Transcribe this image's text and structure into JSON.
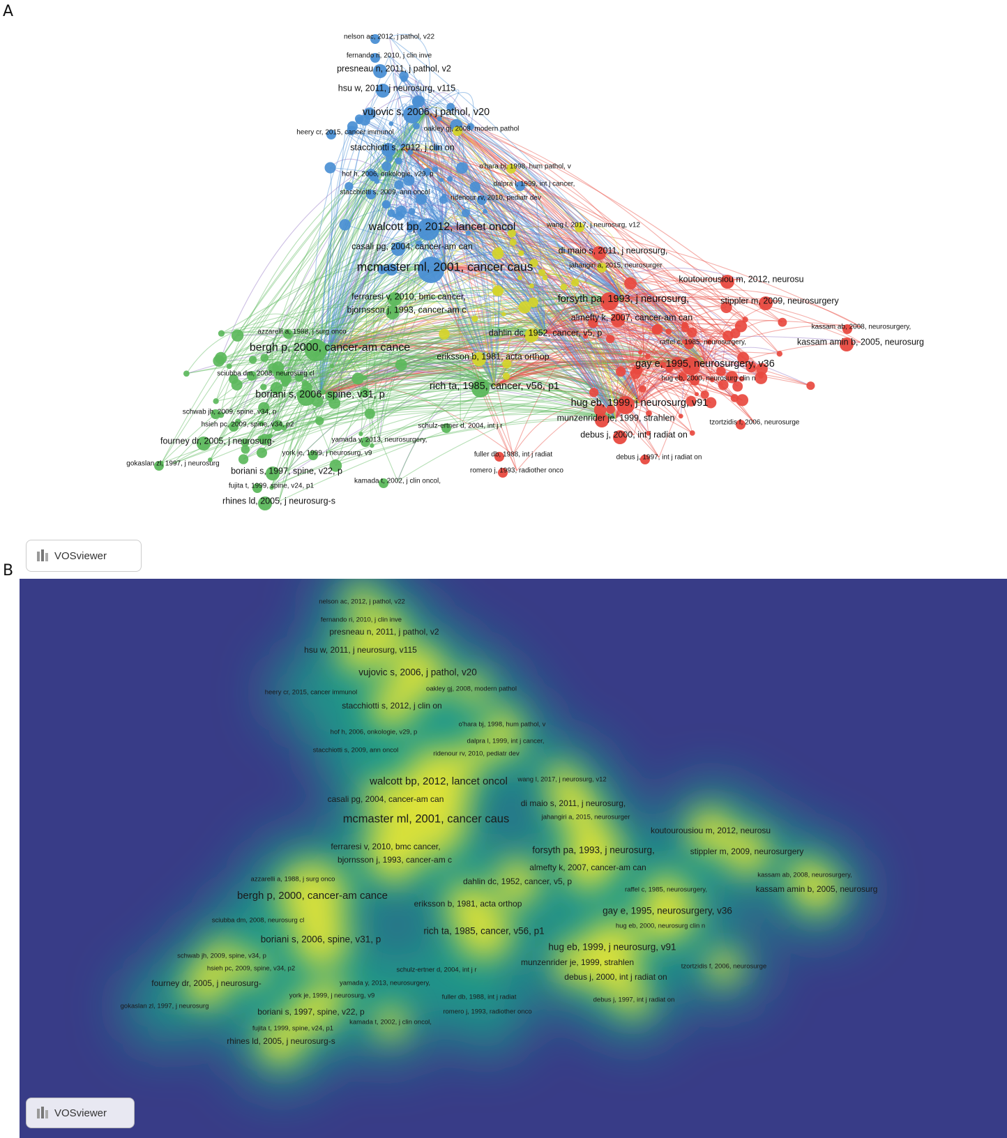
{
  "panels": [
    {
      "label": "A",
      "view": "network"
    },
    {
      "label": "B",
      "view": "density"
    }
  ],
  "badge_text": "VOSviewer",
  "clusters": {
    "blue": "#4a8fd4",
    "green": "#5cb85c",
    "red": "#e8493f",
    "yellow": "#d4d42a",
    "purple": "#8e6fc1"
  },
  "density_colors": {
    "background": "#383c87",
    "mid": "#1f9a8a",
    "high": "#e6e635"
  },
  "nodes": [
    {
      "text": "nelson ac, 2012, j pathol, v22",
      "cluster": "blue",
      "weight": 1
    },
    {
      "text": "fernando ri, 2010, j clin inve",
      "cluster": "blue",
      "weight": 1
    },
    {
      "text": "presneau n, 2011, j pathol, v2",
      "cluster": "blue",
      "weight": 2
    },
    {
      "text": "hsu w, 2011, j neurosurg, v115",
      "cluster": "blue",
      "weight": 2
    },
    {
      "text": "vujovic s, 2006, j pathol, v20",
      "cluster": "blue",
      "weight": 3
    },
    {
      "text": "heery cr, 2015, cancer immunol",
      "cluster": "blue",
      "weight": 1
    },
    {
      "text": "oakley gj, 2008, modern pathol",
      "cluster": "yellow",
      "weight": 1
    },
    {
      "text": "stacchiotti s, 2012, j clin on",
      "cluster": "blue",
      "weight": 2
    },
    {
      "text": "o'hara bj, 1998, hum pathol, v",
      "cluster": "yellow",
      "weight": 1
    },
    {
      "text": "hof h, 2006, onkologie, v29, p",
      "cluster": "blue",
      "weight": 1
    },
    {
      "text": "dalpra l, 1999, int j cancer,",
      "cluster": "blue",
      "weight": 1
    },
    {
      "text": "stacchiotti s, 2009, ann oncol",
      "cluster": "blue",
      "weight": 1
    },
    {
      "text": "ridenour rv, 2010, pediatr dev",
      "cluster": "blue",
      "weight": 1
    },
    {
      "text": "walcott bp, 2012, lancet oncol",
      "cluster": "blue",
      "weight": 4
    },
    {
      "text": "wang l, 2017, j neurosurg, v12",
      "cluster": "yellow",
      "weight": 1
    },
    {
      "text": "casali pg, 2004, cancer-am can",
      "cluster": "blue",
      "weight": 2
    },
    {
      "text": "di maio s, 2011, j neurosurg,",
      "cluster": "red",
      "weight": 2
    },
    {
      "text": "mcmaster ml, 2001, cancer caus",
      "cluster": "blue",
      "weight": 5
    },
    {
      "text": "jahangiri a, 2015, neurosurger",
      "cluster": "yellow",
      "weight": 1
    },
    {
      "text": "koutourousiou m, 2012, neurosu",
      "cluster": "red",
      "weight": 2
    },
    {
      "text": "ferraresi v, 2010, bmc cancer,",
      "cluster": "green",
      "weight": 2
    },
    {
      "text": "forsyth pa, 1993, j neurosurg,",
      "cluster": "red",
      "weight": 3
    },
    {
      "text": "stippler m, 2009, neurosurgery",
      "cluster": "red",
      "weight": 2
    },
    {
      "text": "bjornsson j, 1993, cancer-am c",
      "cluster": "green",
      "weight": 2
    },
    {
      "text": "almefty k, 2007, cancer-am can",
      "cluster": "red",
      "weight": 2
    },
    {
      "text": "azzarelli a, 1988, j surg onco",
      "cluster": "green",
      "weight": 1
    },
    {
      "text": "kassam ab, 2008, neurosurgery,",
      "cluster": "red",
      "weight": 1
    },
    {
      "text": "dahlin dc, 1952, cancer, v5, p",
      "cluster": "yellow",
      "weight": 2
    },
    {
      "text": "raffel c, 1985, neurosurgery,",
      "cluster": "red",
      "weight": 1
    },
    {
      "text": "kassam amin b, 2005, neurosurg",
      "cluster": "red",
      "weight": 2
    },
    {
      "text": "bergh p, 2000, cancer-am cance",
      "cluster": "green",
      "weight": 4
    },
    {
      "text": "eriksson b, 1981, acta orthop",
      "cluster": "yellow",
      "weight": 2
    },
    {
      "text": "gay e, 1995, neurosurgery, v36",
      "cluster": "red",
      "weight": 3
    },
    {
      "text": "sciubba dm, 2008, neurosurg cl",
      "cluster": "green",
      "weight": 1
    },
    {
      "text": "hug eb, 2000, neurosurg clin n",
      "cluster": "red",
      "weight": 1
    },
    {
      "text": "rich ta, 1985, cancer, v56, p1",
      "cluster": "green",
      "weight": 3
    },
    {
      "text": "boriani s, 2006, spine, v31, p",
      "cluster": "green",
      "weight": 3
    },
    {
      "text": "hug eb, 1999, j neurosurg, v91",
      "cluster": "red",
      "weight": 3
    },
    {
      "text": "schwab jh, 2009, spine, v34, p",
      "cluster": "green",
      "weight": 1
    },
    {
      "text": "munzenrider je, 1999, strahlen",
      "cluster": "red",
      "weight": 2
    },
    {
      "text": "hsieh pc, 2009, spine, v34, p2",
      "cluster": "green",
      "weight": 1
    },
    {
      "text": "schulz-ertner d, 2004, int j r",
      "cluster": "green",
      "weight": 1
    },
    {
      "text": "tzortzidis f, 2006, neurosurge",
      "cluster": "red",
      "weight": 1
    },
    {
      "text": "debus j, 2000, int j radiat on",
      "cluster": "red",
      "weight": 2
    },
    {
      "text": "fourney dr, 2005, j neurosurg-",
      "cluster": "green",
      "weight": 2
    },
    {
      "text": "yamada y, 2013, neurosurgery,",
      "cluster": "green",
      "weight": 1
    },
    {
      "text": "york je, 1999, j neurosurg, v9",
      "cluster": "green",
      "weight": 1
    },
    {
      "text": "fuller db, 1988, int j radiat",
      "cluster": "red",
      "weight": 1
    },
    {
      "text": "debus j, 1997, int j radiat on",
      "cluster": "red",
      "weight": 1
    },
    {
      "text": "gokaslan zl, 1997, j neurosurg",
      "cluster": "green",
      "weight": 1
    },
    {
      "text": "boriani s, 1997, spine, v22, p",
      "cluster": "green",
      "weight": 2
    },
    {
      "text": "romero j, 1993, radiother onco",
      "cluster": "red",
      "weight": 1
    },
    {
      "text": "kamada t, 2002, j clin oncol,",
      "cluster": "green",
      "weight": 1
    },
    {
      "text": "fujita t, 1999, spine, v24, p1",
      "cluster": "green",
      "weight": 1
    },
    {
      "text": "rhines ld, 2005, j neurosurg-s",
      "cluster": "green",
      "weight": 2
    }
  ]
}
